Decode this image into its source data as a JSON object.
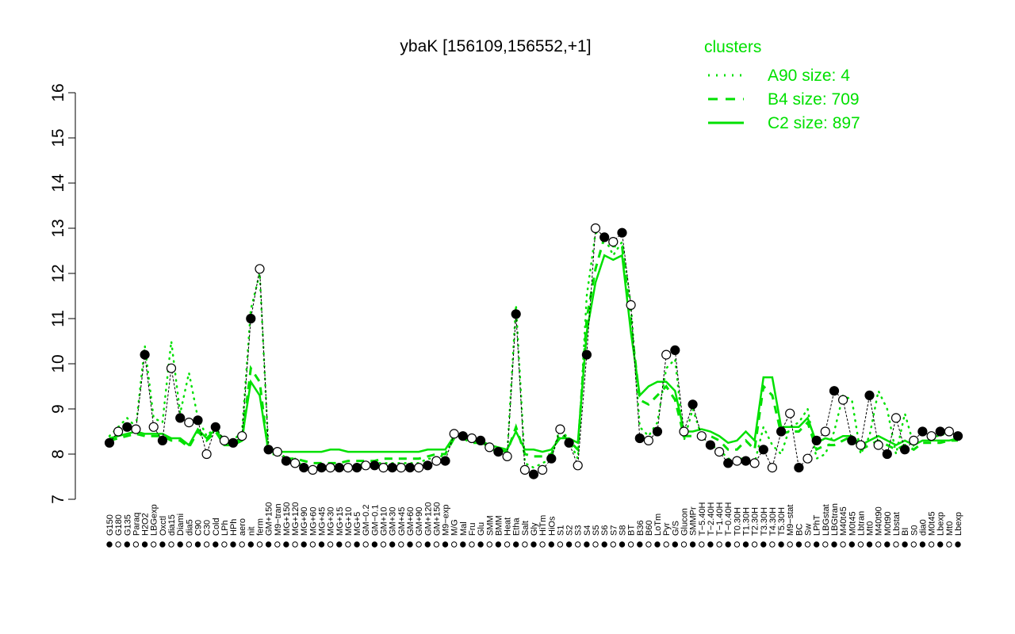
{
  "chart_data": {
    "type": "line",
    "title": "ybaK [156109,156552,+1]",
    "ylim": [
      7,
      16
    ],
    "yticks": [
      7,
      8,
      9,
      10,
      11,
      12,
      13,
      14,
      15,
      16
    ],
    "legend": {
      "title": "clusters",
      "position": "top-right",
      "color": "#00e000",
      "entries": [
        {
          "label": "A90 size: 4",
          "style": "dotted"
        },
        {
          "label": "B4 size: 709",
          "style": "dashed"
        },
        {
          "label": "C2 size: 897",
          "style": "solid"
        }
      ]
    },
    "x_labels": [
      "G150",
      "G180",
      "G135",
      "Paraq",
      "H2O2",
      "LBGexp",
      "Oxctl",
      "dia15",
      "Diami",
      "dia5",
      "C90",
      "C30",
      "Cold",
      "LPh",
      "HPh",
      "aero",
      "nit",
      "ferm",
      "GM+150",
      "M9−tran",
      "MG+150",
      "MG+120",
      "MG+90",
      "MG+60",
      "MG+45",
      "MG+30",
      "MG+15",
      "MG+10",
      "MG+5",
      "GM−0.2",
      "GM−0.1",
      "GM+10",
      "GM+30",
      "GM+45",
      "GM+60",
      "GM+90",
      "GM+120",
      "GM+150",
      "M9−exp",
      "M/G",
      "Mal",
      "Fru",
      "Glu",
      "SMM",
      "BMM",
      "Heat",
      "Etha",
      "Salt",
      "Gly",
      "HiTm",
      "HiOs",
      "S1",
      "S2",
      "S3",
      "S4",
      "S5",
      "S6",
      "S7",
      "S8",
      "BT",
      "B36",
      "B60",
      "LoTm",
      "Pyr",
      "G/S",
      "Glucon",
      "SMMPr",
      "T−5.40H",
      "T−2.40H",
      "T−1.40H",
      "T−0.40H",
      "T0.30H",
      "T1.30H",
      "T2.30H",
      "T3.30H",
      "T4.30H",
      "T5.30H",
      "M9−stat",
      "BC",
      "Sw",
      "LPhT",
      "LBGstat",
      "LBGtran",
      "M40t45",
      "M0t45",
      "Lbtran",
      "Mt0",
      "M40t90",
      "M0t90",
      "Lbstat",
      "BI",
      "S0",
      "dia0",
      "M0t45",
      "Lbexp",
      "Mt0",
      "Lbexp"
    ],
    "series_colors": {
      "cluster": "#00e000",
      "points": "#000000"
    },
    "series": [
      {
        "name": "C2 size: 897",
        "style": "solid",
        "values": [
          8.35,
          8.4,
          8.45,
          8.5,
          8.45,
          8.45,
          8.45,
          8.35,
          8.35,
          8.2,
          8.55,
          8.35,
          8.55,
          8.25,
          8.25,
          8.35,
          9.6,
          9.3,
          8.05,
          8.05,
          8.05,
          8.05,
          8.05,
          8.05,
          8.05,
          8.1,
          8.1,
          8.05,
          8.05,
          8.05,
          8.05,
          8.05,
          8.05,
          8.05,
          8.05,
          8.05,
          8.1,
          8.1,
          8.1,
          8.4,
          8.4,
          8.3,
          8.3,
          8.2,
          8.15,
          8.1,
          8.5,
          8.1,
          8.1,
          8.05,
          8.1,
          8.35,
          8.35,
          8.25,
          10.7,
          11.8,
          12.4,
          12.3,
          12.4,
          10.7,
          9.3,
          9.5,
          9.6,
          9.6,
          9.4,
          8.5,
          8.5,
          8.55,
          8.5,
          8.4,
          8.25,
          8.3,
          8.5,
          8.3,
          9.7,
          9.7,
          8.6,
          8.6,
          8.6,
          8.8,
          8.25,
          8.35,
          8.3,
          8.4,
          8.4,
          8.2,
          8.3,
          8.4,
          8.3,
          8.2,
          8.3,
          8.2,
          8.3,
          8.3,
          8.3,
          8.3,
          8.35
        ]
      },
      {
        "name": "B4 size: 709",
        "style": "dashed",
        "values": [
          8.3,
          8.35,
          8.4,
          8.45,
          8.4,
          8.4,
          8.4,
          8.3,
          8.3,
          8.15,
          8.5,
          8.3,
          8.5,
          8.2,
          8.2,
          8.3,
          9.9,
          9.6,
          8.0,
          8.0,
          7.9,
          7.9,
          7.85,
          7.8,
          7.8,
          7.8,
          7.8,
          7.85,
          7.85,
          7.85,
          7.85,
          7.9,
          7.9,
          7.9,
          7.9,
          7.9,
          7.95,
          8.0,
          8.0,
          8.35,
          8.35,
          8.25,
          8.25,
          8.15,
          8.1,
          8.05,
          8.6,
          8.0,
          7.95,
          7.95,
          8.0,
          8.45,
          8.3,
          8.1,
          11.0,
          12.1,
          12.8,
          12.6,
          12.6,
          10.9,
          9.2,
          9.1,
          9.3,
          9.5,
          9.2,
          8.4,
          8.4,
          8.45,
          8.4,
          8.3,
          8.1,
          8.1,
          8.3,
          8.1,
          9.5,
          9.3,
          8.45,
          8.5,
          8.5,
          8.7,
          8.1,
          8.2,
          8.2,
          8.3,
          8.4,
          8.1,
          8.2,
          8.3,
          8.2,
          8.1,
          8.2,
          8.1,
          8.25,
          8.25,
          8.25,
          8.3,
          8.3
        ]
      },
      {
        "name": "A90 size: 4",
        "style": "dotted",
        "values": [
          8.4,
          8.6,
          8.8,
          8.6,
          10.4,
          8.8,
          8.7,
          10.5,
          8.9,
          9.8,
          8.8,
          8.4,
          8.6,
          8.3,
          8.3,
          8.5,
          11.2,
          12.0,
          8.1,
          8.1,
          7.9,
          7.9,
          7.7,
          7.7,
          7.7,
          7.7,
          7.7,
          7.75,
          7.75,
          7.8,
          7.8,
          7.8,
          7.8,
          7.8,
          7.8,
          7.8,
          7.9,
          7.9,
          8.0,
          8.4,
          8.4,
          8.3,
          8.3,
          8.1,
          8.05,
          8.0,
          11.3,
          7.8,
          7.7,
          7.8,
          7.9,
          8.6,
          8.3,
          7.9,
          11.5,
          12.9,
          12.8,
          12.4,
          12.7,
          11.3,
          8.6,
          8.4,
          8.7,
          9.9,
          10.1,
          8.3,
          9.0,
          8.4,
          8.2,
          8.1,
          7.9,
          7.9,
          7.9,
          7.8,
          8.6,
          8.2,
          8.0,
          8.6,
          8.7,
          9.0,
          7.9,
          8.0,
          8.5,
          9.3,
          9.2,
          8.0,
          8.4,
          9.4,
          9.0,
          8.0,
          8.9,
          8.2,
          8.5,
          8.4,
          8.4,
          8.5,
          8.4
        ]
      },
      {
        "name": "",
        "style": "points",
        "values": [
          8.25,
          8.5,
          8.6,
          8.55,
          10.2,
          8.6,
          8.3,
          9.9,
          8.8,
          8.7,
          8.75,
          8.0,
          8.6,
          8.3,
          8.25,
          8.4,
          11.0,
          12.1,
          8.1,
          8.05,
          7.85,
          7.8,
          7.7,
          7.65,
          7.7,
          7.7,
          7.7,
          7.7,
          7.7,
          7.75,
          7.75,
          7.7,
          7.7,
          7.7,
          7.7,
          7.7,
          7.75,
          7.85,
          7.85,
          8.45,
          8.4,
          8.35,
          8.3,
          8.15,
          8.05,
          7.95,
          11.1,
          7.65,
          7.55,
          7.65,
          7.9,
          8.55,
          8.25,
          7.75,
          10.2,
          13.0,
          12.8,
          12.7,
          12.9,
          11.3,
          8.35,
          8.3,
          8.5,
          10.2,
          10.3,
          8.5,
          9.1,
          8.4,
          8.2,
          8.05,
          7.8,
          7.85,
          7.85,
          7.8,
          8.1,
          7.7,
          8.5,
          8.9,
          7.7,
          7.9,
          8.3,
          8.5,
          9.4,
          9.2,
          8.3,
          8.2,
          9.3,
          8.2,
          8.0,
          8.8,
          8.1,
          8.3,
          8.5,
          8.4,
          8.5,
          8.5,
          8.4
        ]
      }
    ]
  }
}
